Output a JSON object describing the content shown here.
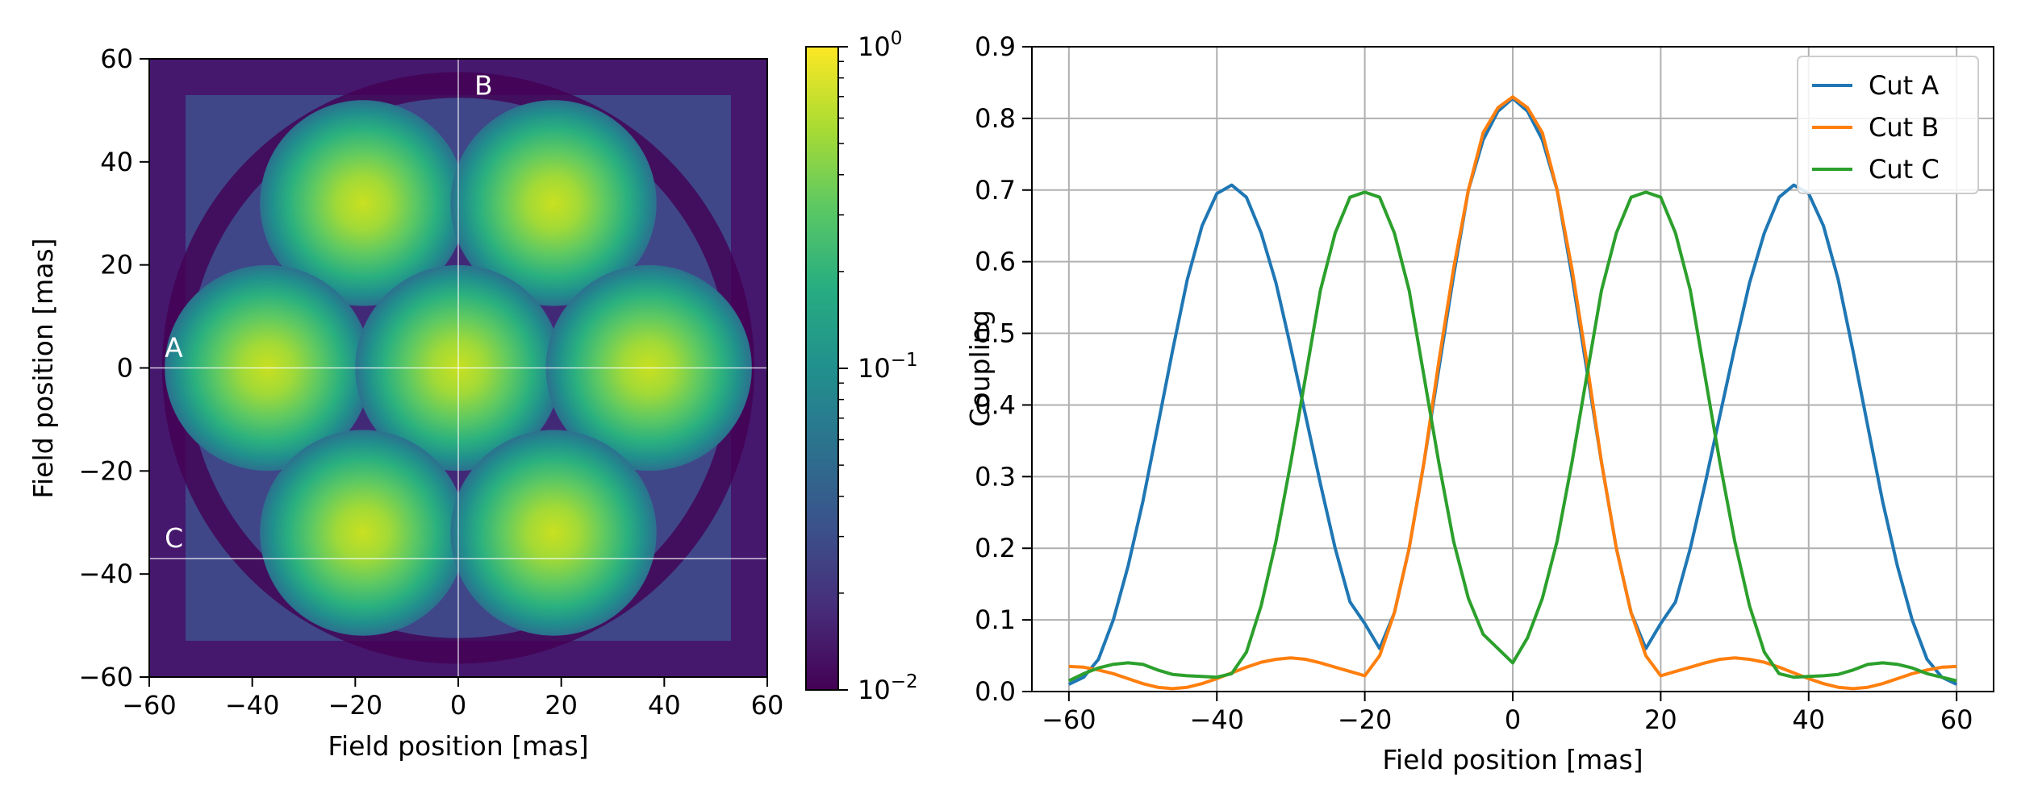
{
  "chart_data": [
    {
      "type": "heatmap",
      "xlabel": "Field position [mas]",
      "ylabel": "Field position [mas]",
      "xlim": [
        -60,
        60
      ],
      "ylim": [
        -60,
        60
      ],
      "x_ticks": [
        -60,
        -40,
        -20,
        0,
        20,
        40,
        60
      ],
      "y_ticks": [
        -60,
        -40,
        -20,
        0,
        20,
        40,
        60
      ],
      "x_tick_labels": [
        "−60",
        "−40",
        "−20",
        "0",
        "20",
        "40",
        "60"
      ],
      "y_tick_labels": [
        "−60",
        "−40",
        "−20",
        "0",
        "20",
        "40",
        "60"
      ],
      "colormap": "viridis",
      "color_scale": "log",
      "color_range": [
        0.01,
        1
      ],
      "colorbar_labels": [
        {
          "base": "10",
          "exp": "0",
          "value": 1
        },
        {
          "base": "10",
          "exp": "−1",
          "value": 0.1
        },
        {
          "base": "10",
          "exp": "−2",
          "value": 0.01
        }
      ],
      "spots": [
        {
          "x": -18.5,
          "y": 32,
          "peak": 0.7
        },
        {
          "x": 18.5,
          "y": 32,
          "peak": 0.7
        },
        {
          "x": -37,
          "y": 0,
          "peak": 0.7
        },
        {
          "x": 0,
          "y": 0,
          "peak": 0.83
        },
        {
          "x": 37,
          "y": 0,
          "peak": 0.7
        },
        {
          "x": -18.5,
          "y": -32,
          "peak": 0.7
        },
        {
          "x": 18.5,
          "y": -32,
          "peak": 0.7
        }
      ],
      "cut_lines": [
        {
          "label": "A",
          "orientation": "horizontal",
          "at": 0
        },
        {
          "label": "B",
          "orientation": "vertical",
          "at": 0
        },
        {
          "label": "C",
          "orientation": "horizontal",
          "at": -37
        }
      ]
    },
    {
      "type": "line",
      "xlabel": "Field position [mas]",
      "ylabel": "Coupling",
      "xlim": [
        -65,
        65
      ],
      "ylim": [
        0,
        0.9
      ],
      "x_ticks": [
        -60,
        -40,
        -20,
        0,
        20,
        40,
        60
      ],
      "x_tick_labels": [
        "−60",
        "−40",
        "−20",
        "0",
        "20",
        "40",
        "60"
      ],
      "y_ticks": [
        0.0,
        0.1,
        0.2,
        0.3,
        0.4,
        0.5,
        0.6,
        0.7,
        0.8,
        0.9
      ],
      "y_tick_labels": [
        "0.0",
        "0.1",
        "0.2",
        "0.3",
        "0.4",
        "0.5",
        "0.6",
        "0.7",
        "0.8",
        "0.9"
      ],
      "grid": true,
      "legend_position": "top-right",
      "x": [
        -60,
        -58,
        -56,
        -54,
        -52,
        -50,
        -48,
        -46,
        -44,
        -42,
        -40,
        -38,
        -36,
        -34,
        -32,
        -30,
        -28,
        -26,
        -24,
        -22,
        -20,
        -18,
        -16,
        -14,
        -12,
        -10,
        -8,
        -6,
        -4,
        -2,
        0,
        2,
        4,
        6,
        8,
        10,
        12,
        14,
        16,
        18,
        20,
        22,
        24,
        26,
        28,
        30,
        32,
        34,
        36,
        38,
        40,
        42,
        44,
        46,
        48,
        50,
        52,
        54,
        56,
        58,
        60
      ],
      "series": [
        {
          "name": "Cut A",
          "color": "#1f77b4",
          "values": [
            0.01,
            0.02,
            0.045,
            0.1,
            0.175,
            0.265,
            0.37,
            0.475,
            0.575,
            0.65,
            0.695,
            0.707,
            0.69,
            0.64,
            0.57,
            0.48,
            0.385,
            0.29,
            0.2,
            0.125,
            0.095,
            0.06,
            0.11,
            0.2,
            0.32,
            0.45,
            0.58,
            0.7,
            0.77,
            0.81,
            0.828,
            0.81,
            0.77,
            0.7,
            0.58,
            0.45,
            0.32,
            0.2,
            0.11,
            0.06,
            0.095,
            0.125,
            0.2,
            0.29,
            0.385,
            0.48,
            0.57,
            0.64,
            0.69,
            0.707,
            0.695,
            0.65,
            0.575,
            0.475,
            0.37,
            0.265,
            0.175,
            0.1,
            0.045,
            0.02,
            0.01
          ]
        },
        {
          "name": "Cut B",
          "color": "#ff7f0e",
          "values": [
            0.035,
            0.034,
            0.03,
            0.025,
            0.018,
            0.011,
            0.006,
            0.004,
            0.006,
            0.011,
            0.018,
            0.026,
            0.034,
            0.041,
            0.045,
            0.047,
            0.045,
            0.04,
            0.034,
            0.028,
            0.022,
            0.05,
            0.11,
            0.2,
            0.32,
            0.46,
            0.59,
            0.7,
            0.78,
            0.815,
            0.83,
            0.815,
            0.78,
            0.7,
            0.59,
            0.46,
            0.32,
            0.2,
            0.11,
            0.05,
            0.022,
            0.028,
            0.034,
            0.04,
            0.045,
            0.047,
            0.045,
            0.041,
            0.034,
            0.026,
            0.018,
            0.011,
            0.006,
            0.004,
            0.006,
            0.011,
            0.018,
            0.025,
            0.03,
            0.034,
            0.035
          ]
        },
        {
          "name": "Cut C",
          "color": "#2ca02c",
          "values": [
            0.015,
            0.025,
            0.033,
            0.038,
            0.04,
            0.038,
            0.03,
            0.024,
            0.022,
            0.021,
            0.02,
            0.025,
            0.055,
            0.12,
            0.21,
            0.32,
            0.44,
            0.56,
            0.64,
            0.69,
            0.697,
            0.69,
            0.64,
            0.56,
            0.44,
            0.32,
            0.21,
            0.13,
            0.08,
            0.06,
            0.04,
            0.075,
            0.13,
            0.21,
            0.32,
            0.44,
            0.56,
            0.64,
            0.69,
            0.697,
            0.69,
            0.64,
            0.56,
            0.44,
            0.32,
            0.21,
            0.12,
            0.055,
            0.025,
            0.02,
            0.021,
            0.022,
            0.024,
            0.03,
            0.038,
            0.04,
            0.038,
            0.033,
            0.025,
            0.02,
            0.015
          ]
        }
      ]
    }
  ]
}
